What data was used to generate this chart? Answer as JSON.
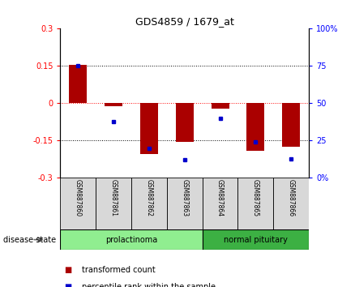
{
  "title": "GDS4859 / 1679_at",
  "samples": [
    "GSM887860",
    "GSM887861",
    "GSM887862",
    "GSM887863",
    "GSM887864",
    "GSM887865",
    "GSM887866"
  ],
  "red_values": [
    0.155,
    -0.01,
    -0.205,
    -0.155,
    -0.02,
    -0.19,
    -0.175
  ],
  "blue_values": [
    75,
    38,
    20,
    12,
    40,
    24,
    13
  ],
  "ylim": [
    -0.3,
    0.3
  ],
  "yticks_left": [
    -0.3,
    -0.15,
    0,
    0.15,
    0.3
  ],
  "yticks_right": [
    0,
    25,
    50,
    75,
    100
  ],
  "groups": [
    {
      "label": "prolactinoma",
      "indices": [
        0,
        1,
        2,
        3
      ],
      "color": "#90EE90"
    },
    {
      "label": "normal pituitary",
      "indices": [
        4,
        5,
        6
      ],
      "color": "#3CB043"
    }
  ],
  "disease_state_label": "disease state",
  "bar_color": "#AA0000",
  "dot_color": "#0000CC",
  "sample_box_color": "#D8D8D8",
  "legend_red_label": "transformed count",
  "legend_blue_label": "percentile rank within the sample"
}
